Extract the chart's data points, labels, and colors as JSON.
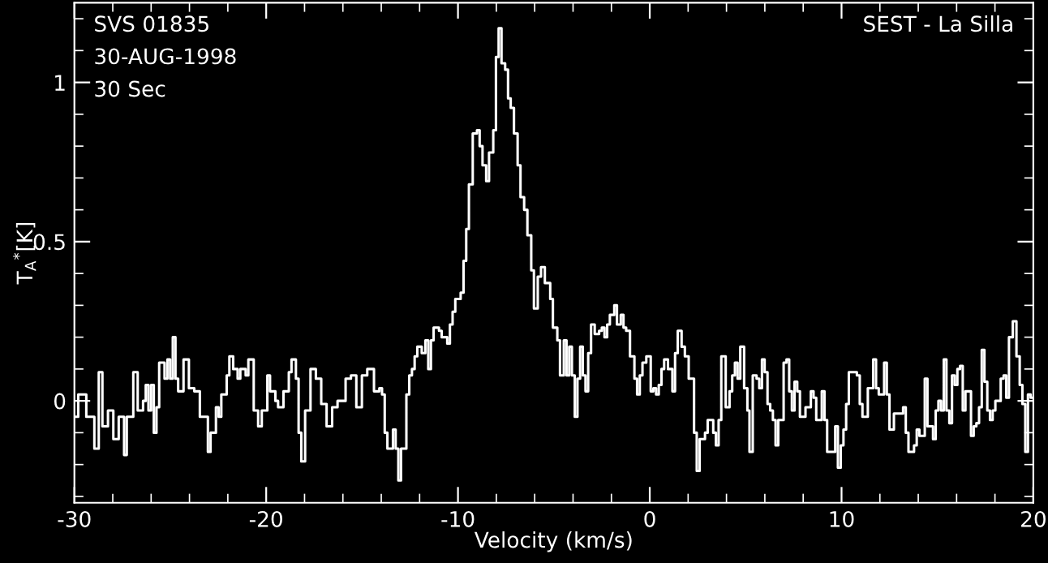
{
  "chart_data": {
    "type": "step",
    "xlabel": "Velocity (km/s)",
    "ylabel": "T$_{A}$$^{*}$[K]",
    "annotations": [
      "SVS 01835",
      "30-AUG-1998",
      "30 Sec",
      "SEST - La Silla"
    ],
    "xlim": [
      -30,
      20
    ],
    "ylim": [
      -0.32,
      1.25
    ],
    "xticks": [
      -30,
      -20,
      -10,
      0,
      10,
      20
    ],
    "yticks": [
      0,
      0.5,
      1
    ],
    "grid": false,
    "marker": "none",
    "line_style": "solid",
    "series": [
      {
        "color": "#ffffff",
        "x": [
          -29.94,
          -29.8,
          -29.38,
          -28.96,
          -28.73,
          -28.54,
          -28.25,
          -27.97,
          -27.69,
          -27.41,
          -27.27,
          -26.93,
          -26.7,
          -26.42,
          -26.28,
          -26.14,
          -26.0,
          -25.86,
          -25.72,
          -25.58,
          -25.3,
          -25.15,
          -25.01,
          -24.87,
          -24.73,
          -24.59,
          -24.31,
          -24.03,
          -23.75,
          -23.46,
          -23.04,
          -22.9,
          -22.62,
          -22.48,
          -22.34,
          -22.06,
          -21.92,
          -21.72,
          -21.49,
          -21.35,
          -21.07,
          -20.93,
          -20.65,
          -20.42,
          -20.23,
          -19.94,
          -19.8,
          -19.52,
          -19.38,
          -19.1,
          -18.82,
          -18.68,
          -18.45,
          -18.31,
          -18.17,
          -17.97,
          -17.69,
          -17.41,
          -17.13,
          -16.85,
          -16.56,
          -16.28,
          -15.86,
          -15.58,
          -15.3,
          -15.01,
          -14.73,
          -14.38,
          -14.1,
          -13.96,
          -13.82,
          -13.68,
          -13.39,
          -13.25,
          -13.11,
          -12.97,
          -12.69,
          -12.54,
          -12.4,
          -12.26,
          -12.12,
          -11.89,
          -11.7,
          -11.55,
          -11.41,
          -11.27,
          -10.99,
          -10.85,
          -10.56,
          -10.42,
          -10.28,
          -10.14,
          -9.86,
          -9.71,
          -9.57,
          -9.43,
          -9.23,
          -9.01,
          -8.87,
          -8.72,
          -8.53,
          -8.38,
          -8.16,
          -8.02,
          -7.88,
          -7.73,
          -7.54,
          -7.39,
          -7.25,
          -7.08,
          -6.89,
          -6.74,
          -6.55,
          -6.38,
          -6.18,
          -6.04,
          -5.84,
          -5.67,
          -5.47,
          -5.19,
          -5.05,
          -4.82,
          -4.68,
          -4.48,
          -4.34,
          -4.2,
          -4.06,
          -3.91,
          -3.77,
          -3.63,
          -3.49,
          -3.35,
          -3.21,
          -3.06,
          -2.87,
          -2.64,
          -2.5,
          -2.36,
          -2.22,
          -2.08,
          -1.85,
          -1.71,
          -1.51,
          -1.37,
          -1.23,
          -1.03,
          -0.8,
          -0.66,
          -0.52,
          -0.38,
          -0.18,
          0.05,
          0.19,
          0.33,
          0.47,
          0.61,
          0.75,
          0.95,
          1.18,
          1.32,
          1.46,
          1.66,
          1.83,
          2.03,
          2.31,
          2.45,
          2.6,
          2.88,
          3.02,
          3.31,
          3.45,
          3.59,
          3.73,
          3.96,
          4.16,
          4.3,
          4.44,
          4.58,
          4.72,
          4.92,
          5.09,
          5.2,
          5.37,
          5.57,
          5.71,
          5.85,
          5.99,
          6.14,
          6.28,
          6.42,
          6.56,
          6.7,
          6.98,
          7.13,
          7.27,
          7.41,
          7.55,
          7.69,
          7.83,
          8.12,
          8.4,
          8.54,
          8.68,
          8.97,
          9.11,
          9.25,
          9.67,
          9.81,
          9.96,
          10.1,
          10.24,
          10.38,
          10.8,
          10.95,
          11.09,
          11.37,
          11.65,
          11.8,
          11.94,
          12.22,
          12.36,
          12.5,
          12.73,
          13.21,
          13.35,
          13.49,
          13.78,
          13.92,
          14.06,
          14.34,
          14.48,
          14.77,
          14.91,
          15.05,
          15.19,
          15.33,
          15.47,
          15.62,
          15.76,
          15.9,
          16.04,
          16.18,
          16.32,
          16.46,
          16.75,
          16.89,
          17.03,
          17.17,
          17.31,
          17.45,
          17.6,
          17.74,
          17.88,
          18.02,
          18.3,
          18.45,
          18.59,
          18.73,
          18.93,
          19.12,
          19.29,
          19.43,
          19.58,
          19.72,
          19.86,
          19.95
        ],
        "values": [
          -0.05,
          0.02,
          -0.05,
          -0.15,
          0.09,
          -0.08,
          -0.03,
          -0.12,
          -0.05,
          -0.17,
          -0.05,
          0.09,
          -0.03,
          0.0,
          0.05,
          -0.03,
          0.05,
          -0.1,
          -0.02,
          0.12,
          0.07,
          0.13,
          0.07,
          0.2,
          0.07,
          0.03,
          0.13,
          0.04,
          0.03,
          -0.05,
          -0.16,
          -0.1,
          -0.02,
          -0.05,
          0.02,
          0.08,
          0.14,
          0.1,
          0.07,
          0.1,
          0.08,
          0.13,
          -0.03,
          -0.08,
          -0.03,
          0.08,
          0.03,
          0.0,
          -0.02,
          0.03,
          0.09,
          0.13,
          0.07,
          -0.1,
          -0.19,
          -0.03,
          0.1,
          0.07,
          -0.01,
          -0.08,
          -0.02,
          0.0,
          0.07,
          0.08,
          -0.02,
          0.08,
          0.1,
          0.03,
          0.04,
          0.02,
          -0.1,
          -0.15,
          -0.09,
          -0.15,
          -0.25,
          -0.15,
          0.02,
          0.08,
          0.1,
          0.14,
          0.17,
          0.15,
          0.19,
          0.1,
          0.19,
          0.23,
          0.22,
          0.2,
          0.18,
          0.24,
          0.28,
          0.32,
          0.34,
          0.44,
          0.54,
          0.68,
          0.84,
          0.85,
          0.8,
          0.74,
          0.69,
          0.78,
          0.85,
          1.08,
          1.17,
          1.06,
          1.04,
          0.95,
          0.92,
          0.84,
          0.74,
          0.64,
          0.6,
          0.52,
          0.41,
          0.29,
          0.39,
          0.42,
          0.37,
          0.32,
          0.23,
          0.19,
          0.08,
          0.19,
          0.08,
          0.17,
          0.08,
          -0.05,
          0.07,
          0.17,
          0.08,
          0.03,
          0.15,
          0.24,
          0.21,
          0.22,
          0.23,
          0.2,
          0.24,
          0.27,
          0.3,
          0.24,
          0.27,
          0.23,
          0.22,
          0.14,
          0.07,
          0.02,
          0.08,
          0.12,
          0.14,
          0.03,
          0.04,
          0.02,
          0.05,
          0.1,
          0.13,
          0.1,
          0.03,
          0.15,
          0.22,
          0.17,
          0.14,
          0.07,
          -0.1,
          -0.22,
          -0.12,
          -0.1,
          -0.06,
          -0.1,
          -0.14,
          -0.06,
          0.14,
          -0.02,
          0.03,
          0.08,
          0.12,
          0.07,
          0.17,
          0.04,
          -0.03,
          -0.16,
          0.08,
          0.07,
          0.04,
          0.13,
          0.09,
          -0.01,
          -0.03,
          -0.06,
          -0.14,
          -0.06,
          0.12,
          0.13,
          0.03,
          -0.03,
          0.06,
          0.03,
          -0.05,
          -0.02,
          0.03,
          0.01,
          -0.06,
          0.03,
          -0.06,
          -0.16,
          -0.08,
          -0.21,
          -0.14,
          -0.09,
          -0.01,
          0.09,
          0.08,
          -0.01,
          -0.05,
          0.04,
          0.13,
          0.04,
          0.02,
          0.12,
          0.02,
          -0.09,
          -0.04,
          -0.02,
          -0.1,
          -0.16,
          -0.14,
          -0.09,
          -0.11,
          0.07,
          -0.08,
          -0.12,
          -0.03,
          0.0,
          -0.03,
          0.13,
          -0.03,
          -0.07,
          0.08,
          0.05,
          0.1,
          0.11,
          -0.03,
          0.03,
          -0.11,
          -0.08,
          -0.07,
          -0.02,
          0.16,
          0.06,
          -0.03,
          -0.06,
          -0.03,
          0.0,
          0.07,
          0.08,
          0.01,
          0.2,
          0.25,
          0.14,
          0.05,
          -0.01,
          -0.16,
          0.02,
          0.01,
          0.01
        ]
      }
    ]
  }
}
